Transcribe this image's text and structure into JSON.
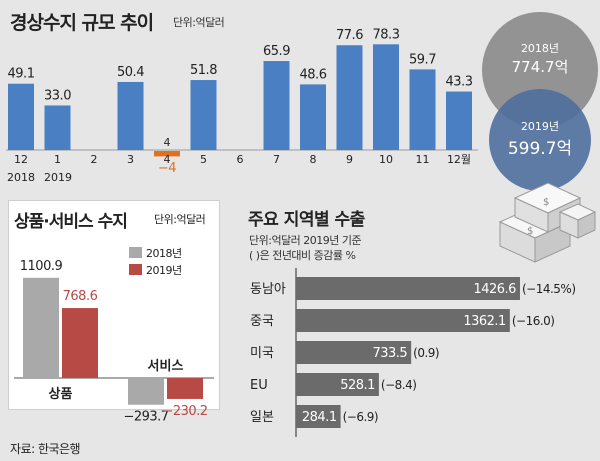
{
  "title": "경상수지 규모 추이",
  "unit": "단위:억달러",
  "source": "자료: 한국은행",
  "chart_data": [
    {
      "type": "bar",
      "title": "경상수지 규모 추이",
      "unit": "단위:억달러",
      "categories": [
        "12",
        "1",
        "2",
        "3",
        "4",
        "5",
        "6",
        "7",
        "8",
        "9",
        "10",
        "11",
        "12월"
      ],
      "year_labels": [
        "2018",
        "2019"
      ],
      "values": [
        49.1,
        33.0,
        null,
        50.4,
        -4,
        51.8,
        null,
        65.9,
        48.6,
        77.6,
        78.3,
        59.7,
        43.3
      ],
      "labels": [
        "49.1",
        "33.0",
        "",
        "50.4",
        "−4",
        "51.8",
        "",
        "65.9",
        "48.6",
        "77.6",
        "78.3",
        "59.7",
        "43.3"
      ],
      "extra_labels": [
        {
          "category": "4",
          "text": "4"
        }
      ],
      "ylim": [
        -10,
        85
      ],
      "colors": {
        "positive": "#4a7fc4",
        "negative": "#e2711b"
      }
    },
    {
      "type": "bar",
      "title": "상품·서비스 수지",
      "unit": "단위:억달러",
      "categories": [
        "상품",
        "서비스"
      ],
      "series": [
        {
          "name": "2018년",
          "values": [
            1100.9,
            -293.7
          ],
          "labels": [
            "1100.9",
            "−293.7"
          ],
          "color": "#a9a9a9"
        },
        {
          "name": "2019년",
          "values": [
            768.6,
            -230.2
          ],
          "labels": [
            "768.6",
            "−230.2"
          ],
          "color": "#b84a46"
        }
      ]
    },
    {
      "type": "bar",
      "orientation": "horizontal",
      "title": "주요 지역별 수출",
      "notes": [
        "단위:억달러 2019년 기준",
        "( )은 전년대비 증감률 %"
      ],
      "categories": [
        "동남아",
        "중국",
        "미국",
        "EU",
        "일본"
      ],
      "values": [
        1426.6,
        1362.1,
        733.5,
        528.1,
        284.1
      ],
      "value_labels": [
        "1426.6",
        "1362.1",
        "733.5",
        "528.1",
        "284.1"
      ],
      "change_labels": [
        "(−14.5%)",
        "(−16.0)",
        "(0.9)",
        "(−8.4)",
        "(−6.9)"
      ],
      "color": "#6b6b6b"
    },
    {
      "type": "pie",
      "items": [
        {
          "year": "2018년",
          "value": 774.7,
          "label": "774.7억",
          "color": "#8c8c8c"
        },
        {
          "year": "2019년",
          "value": 599.7,
          "label": "599.7억",
          "color": "#4f6f9f"
        }
      ]
    }
  ]
}
